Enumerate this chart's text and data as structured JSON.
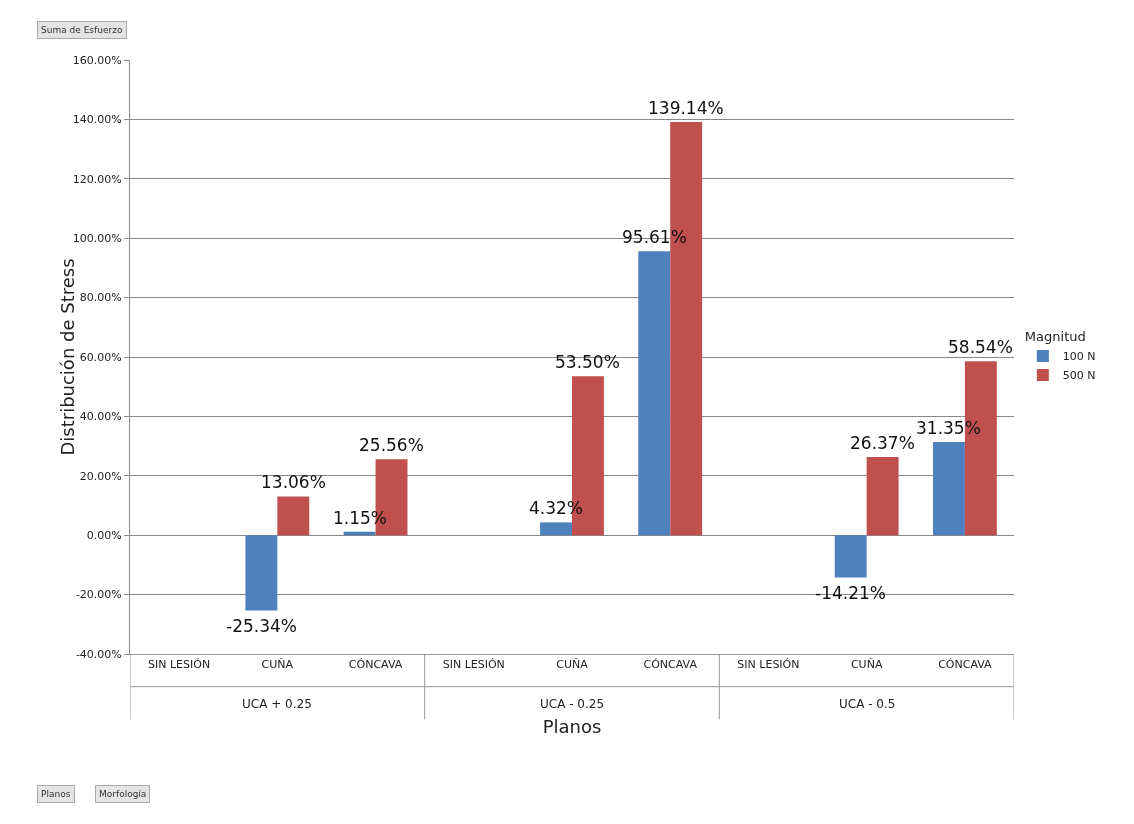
{
  "chart_data": {
    "type": "bar",
    "xlabel": "Planos",
    "ylabel": "Distribución de Stress",
    "legend_title": "Magnitud",
    "categories": [
      "SIN LESIÓN",
      "CUÑA",
      "CÓNCAVA",
      "SIN LESIÓN",
      "CUÑA",
      "CÓNCAVA",
      "SIN LESIÓN",
      "CUÑA",
      "CÓNCAVA"
    ],
    "series": [
      {
        "name": "100 N",
        "color": "#4f81bd",
        "values": [
          null,
          -25.34,
          1.15,
          null,
          4.32,
          95.61,
          null,
          -14.21,
          31.35
        ],
        "value_labels": [
          null,
          "-25.34%",
          "1.15%",
          null,
          "4.32%",
          "95.61%",
          null,
          "-14.21%",
          "31.35%"
        ]
      },
      {
        "name": "500 N",
        "color": "#c0504d",
        "values": [
          null,
          13.06,
          25.56,
          null,
          53.5,
          139.14,
          null,
          26.37,
          58.54
        ],
        "value_labels": [
          null,
          "13.06%",
          "25.56%",
          null,
          "53.50%",
          "139.14%",
          null,
          "26.37%",
          "58.54%"
        ]
      }
    ],
    "ylim": [
      -40,
      160
    ],
    "yticks": [
      {
        "value": -40,
        "label": "-40.00%"
      },
      {
        "value": -20,
        "label": "-20.00%"
      },
      {
        "value": 0,
        "label": "0.00%"
      },
      {
        "value": 20,
        "label": "20.00%"
      },
      {
        "value": 40,
        "label": "40.00%"
      },
      {
        "value": 60,
        "label": "60.00%"
      },
      {
        "value": 80,
        "label": "80.00%"
      },
      {
        "value": 100,
        "label": "100.00%"
      },
      {
        "value": 120,
        "label": "120.00%"
      },
      {
        "value": 140,
        "label": "140.00%"
      },
      {
        "value": 160,
        "label": "160.00%"
      }
    ],
    "grid": "y",
    "legend": "right",
    "annotations": [
      "UCA + 0.25",
      "UCA - 0.25",
      "UCA - 0.5",
      "Suma de Esfuerzo",
      "Planos",
      "Morfología"
    ]
  }
}
